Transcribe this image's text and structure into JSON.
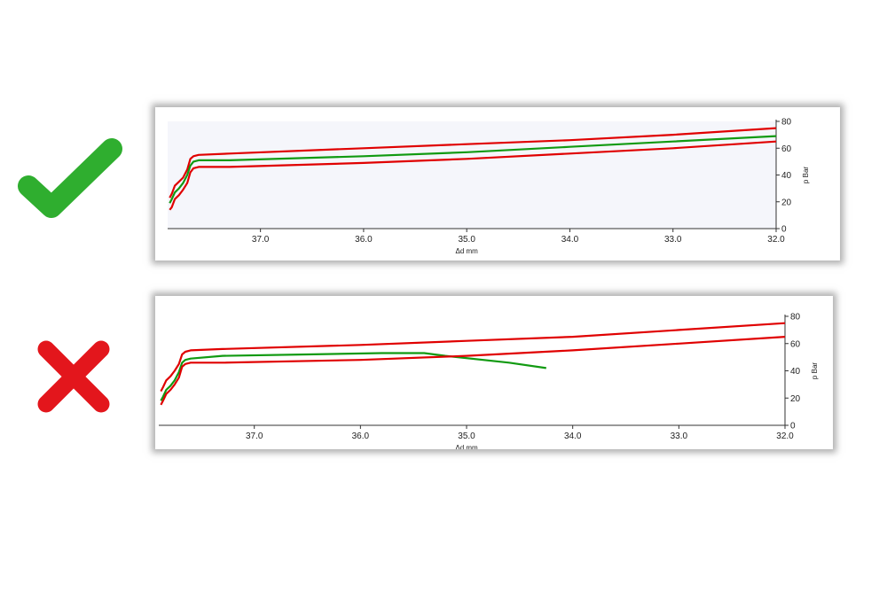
{
  "marks": {
    "good": "check-mark-icon",
    "bad": "cross-mark-icon",
    "good_color": "#2fae2f",
    "bad_color": "#e3161c"
  },
  "chart_data": [
    {
      "type": "line",
      "title": "",
      "xlabel": "Δd mm",
      "ylabel": "p Bar",
      "xlim": [
        37.9,
        32.0
      ],
      "ylim": [
        0,
        80
      ],
      "x_ticks": [
        "37.0",
        "36.0",
        "35.0",
        "34.0",
        "33.0",
        "32.0"
      ],
      "y_ticks": [
        "0",
        "20",
        "40",
        "60",
        "80"
      ],
      "grid": false,
      "plot_background": "#f5f6fb",
      "series": [
        {
          "color": "#e00000",
          "x": [
            37.88,
            37.86,
            37.83,
            37.79,
            37.75,
            37.71,
            37.68,
            37.65,
            37.6,
            37.3,
            36.0,
            35.0,
            34.0,
            33.0,
            32.0
          ],
          "y": [
            23,
            26,
            32,
            35,
            38,
            44,
            52,
            54,
            55,
            56,
            60,
            63,
            66,
            70,
            75
          ]
        },
        {
          "color": "#119a11",
          "x": [
            37.88,
            37.86,
            37.83,
            37.79,
            37.75,
            37.71,
            37.68,
            37.65,
            37.6,
            37.3,
            36.0,
            35.0,
            34.0,
            33.0,
            32.0
          ],
          "y": [
            19,
            22,
            27,
            30,
            34,
            40,
            47,
            50,
            51,
            51,
            54,
            57,
            61,
            65,
            69
          ]
        },
        {
          "color": "#e00000",
          "x": [
            37.88,
            37.86,
            37.83,
            37.79,
            37.75,
            37.71,
            37.68,
            37.65,
            37.6,
            37.3,
            36.0,
            35.0,
            34.0,
            33.0,
            32.0
          ],
          "y": [
            14,
            16,
            22,
            25,
            29,
            34,
            42,
            45,
            46,
            46,
            49,
            52,
            56,
            60,
            65
          ]
        }
      ]
    },
    {
      "type": "line",
      "title": "",
      "xlabel": "Δd mm",
      "ylabel": "p Bar",
      "xlim": [
        37.9,
        32.0
      ],
      "ylim": [
        0,
        80
      ],
      "x_ticks": [
        "37.0",
        "36.0",
        "35.0",
        "34.0",
        "33.0",
        "32.0"
      ],
      "y_ticks": [
        "0",
        "20",
        "40",
        "60",
        "80"
      ],
      "grid": false,
      "plot_background": "#ffffff",
      "series": [
        {
          "color": "#e00000",
          "x": [
            37.88,
            37.86,
            37.83,
            37.79,
            37.75,
            37.71,
            37.68,
            37.65,
            37.6,
            37.3,
            36.0,
            35.0,
            34.0,
            33.0,
            32.0
          ],
          "y": [
            25,
            28,
            33,
            36,
            40,
            45,
            52,
            54,
            55,
            56,
            59,
            62,
            65,
            70,
            75
          ]
        },
        {
          "color": "#119a11",
          "x": [
            37.88,
            37.86,
            37.83,
            37.79,
            37.75,
            37.71,
            37.68,
            37.65,
            37.6,
            37.3,
            36.5,
            35.8,
            35.4,
            35.2,
            34.6,
            34.25
          ],
          "y": [
            18,
            21,
            26,
            29,
            33,
            39,
            46,
            48,
            49,
            51,
            52,
            53,
            53,
            51,
            46,
            42
          ]
        },
        {
          "color": "#e00000",
          "x": [
            37.88,
            37.86,
            37.83,
            37.79,
            37.75,
            37.71,
            37.68,
            37.65,
            37.6,
            37.3,
            36.0,
            35.0,
            34.0,
            33.0,
            32.0
          ],
          "y": [
            15,
            18,
            23,
            26,
            30,
            35,
            43,
            45,
            46,
            46,
            48,
            51,
            55,
            60,
            65
          ]
        }
      ]
    }
  ]
}
